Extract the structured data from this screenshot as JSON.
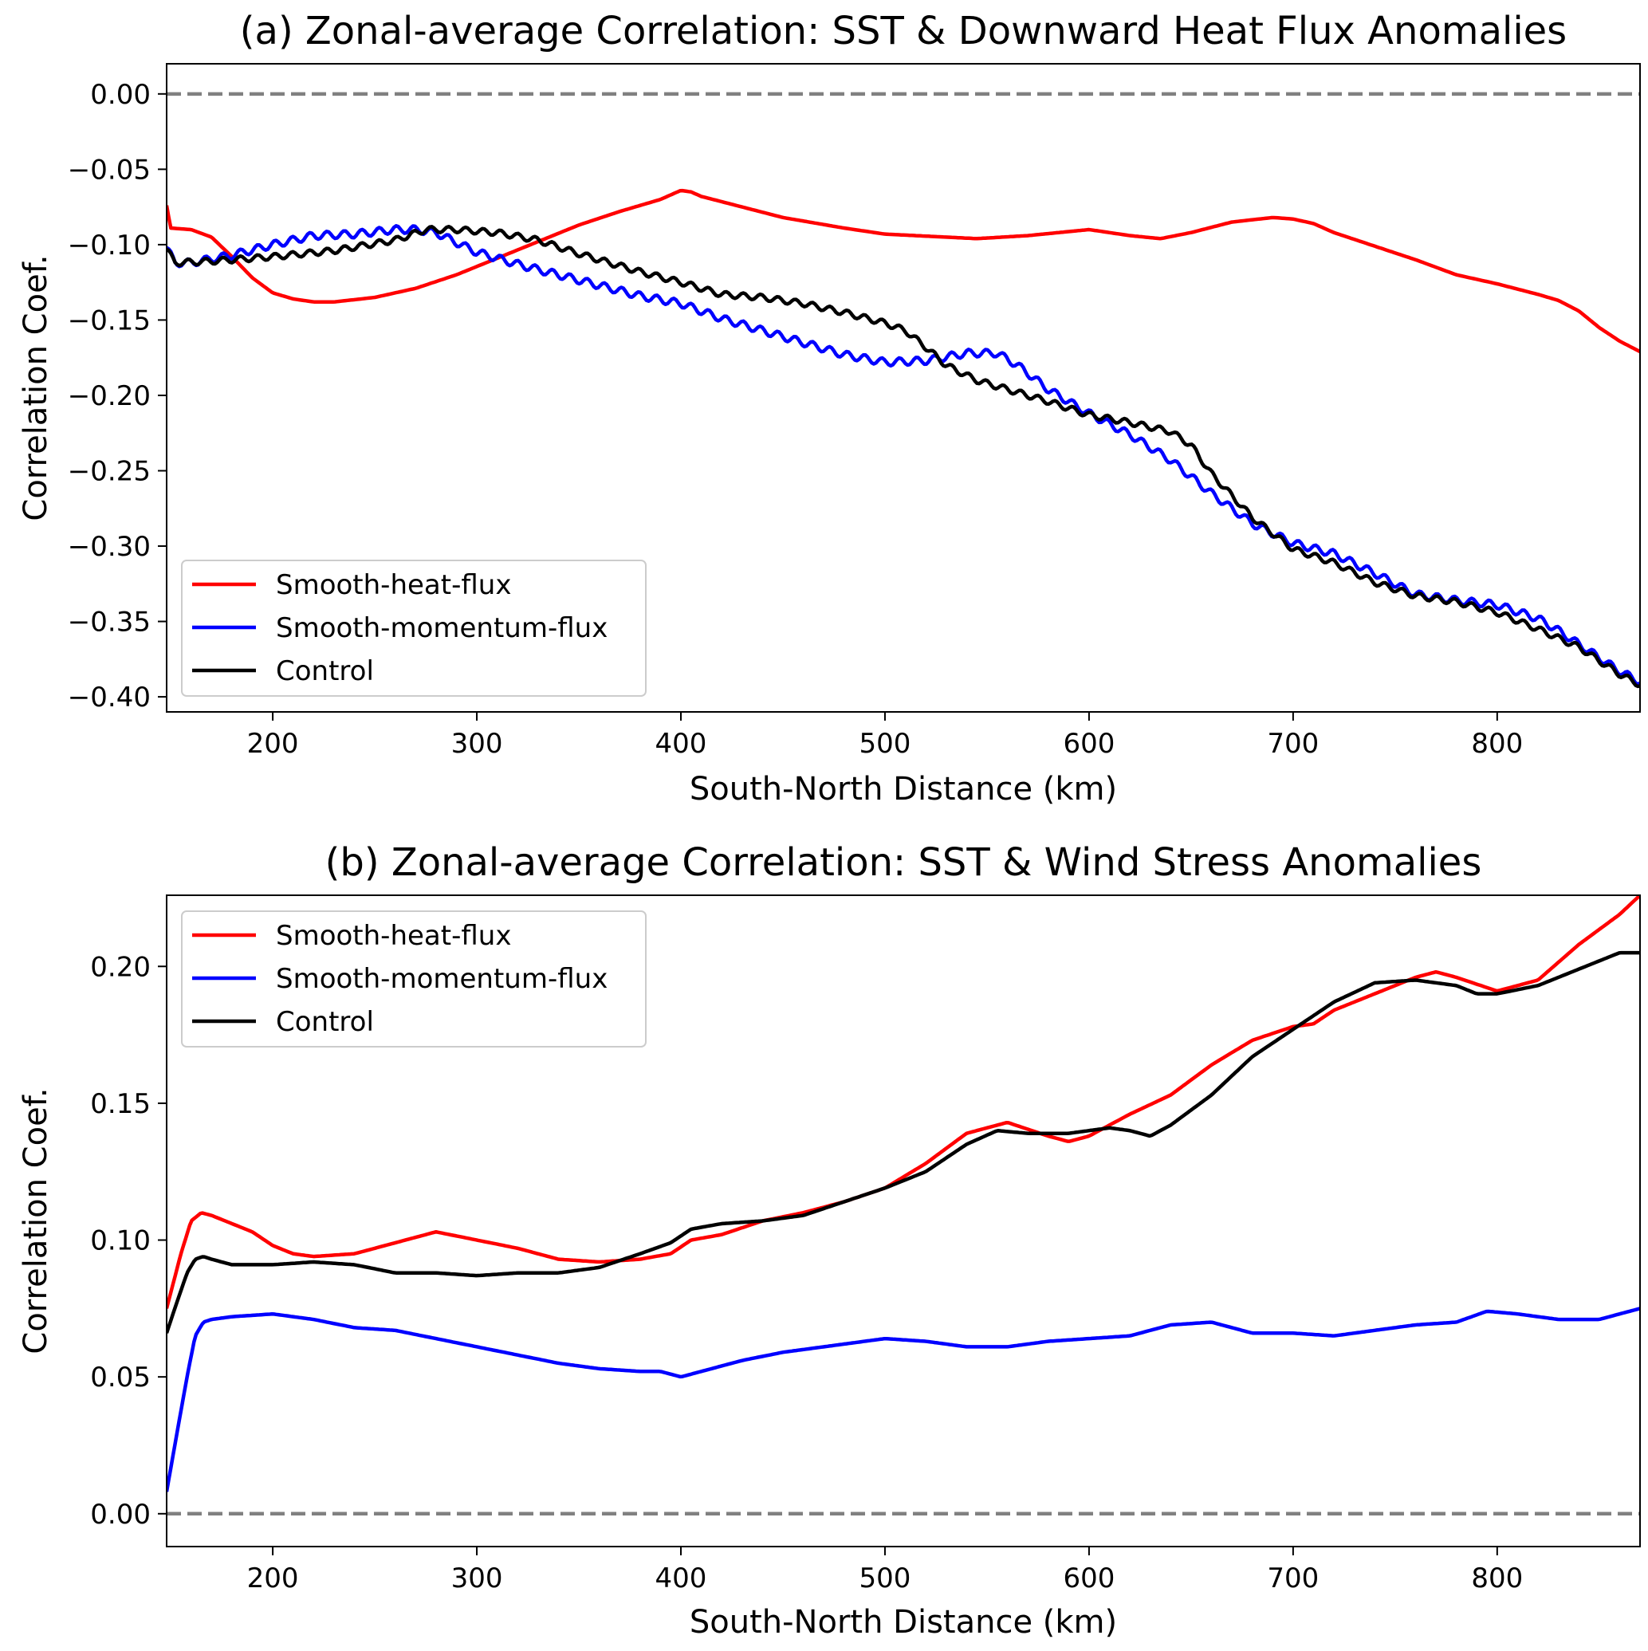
{
  "chart_data": [
    {
      "type": "line",
      "title": "(a) Zonal-average Correlation: SST & Downward Heat Flux Anomalies",
      "xlabel": "South-North Distance (km)",
      "ylabel": "Correlation Coef.",
      "xlim": [
        148,
        870
      ],
      "ylim": [
        -0.41,
        0.02
      ],
      "xticks": [
        200,
        300,
        400,
        500,
        600,
        700,
        800
      ],
      "xtick_labels": [
        "200",
        "300",
        "400",
        "500",
        "600",
        "700",
        "800"
      ],
      "yticks": [
        0,
        -0.05,
        -0.1,
        -0.15,
        -0.2,
        -0.25,
        -0.3,
        -0.35,
        -0.4
      ],
      "ytick_labels": [
        "0.00",
        "−0.05",
        "−0.10",
        "−0.15",
        "−0.20",
        "−0.25",
        "−0.30",
        "−0.35",
        "−0.40"
      ],
      "reference_line": {
        "y": 0.0,
        "style": "dashed",
        "color": "#808080"
      },
      "legend": {
        "position": "bottom-left",
        "entries": [
          "Smooth-heat-flux",
          "Smooth-momentum-flux",
          "Control"
        ]
      },
      "grid": false,
      "series": [
        {
          "name": "Smooth-heat-flux",
          "color": "#ff0000",
          "ripple": 0,
          "x": [
            148,
            150,
            160,
            170,
            180,
            190,
            200,
            210,
            220,
            230,
            250,
            270,
            290,
            310,
            330,
            350,
            370,
            390,
            395,
            400,
            405,
            410,
            430,
            450,
            480,
            500,
            530,
            545,
            570,
            600,
            620,
            635,
            650,
            670,
            690,
            700,
            710,
            720,
            740,
            760,
            780,
            800,
            820,
            830,
            840,
            850,
            860,
            870
          ],
          "y": [
            -0.074,
            -0.089,
            -0.09,
            -0.095,
            -0.108,
            -0.122,
            -0.132,
            -0.136,
            -0.138,
            -0.138,
            -0.135,
            -0.129,
            -0.12,
            -0.109,
            -0.098,
            -0.087,
            -0.078,
            -0.07,
            -0.067,
            -0.064,
            -0.065,
            -0.068,
            -0.075,
            -0.082,
            -0.089,
            -0.093,
            -0.095,
            -0.096,
            -0.094,
            -0.09,
            -0.094,
            -0.096,
            -0.092,
            -0.085,
            -0.082,
            -0.083,
            -0.086,
            -0.092,
            -0.101,
            -0.11,
            -0.12,
            -0.126,
            -0.133,
            -0.137,
            -0.144,
            -0.155,
            -0.164,
            -0.171
          ]
        },
        {
          "name": "Smooth-momentum-flux",
          "color": "#0000ff",
          "ripple": 0.0025,
          "x": [
            148,
            152,
            160,
            180,
            200,
            220,
            240,
            260,
            270,
            280,
            300,
            320,
            340,
            360,
            380,
            400,
            420,
            440,
            460,
            480,
            500,
            520,
            540,
            555,
            565,
            580,
            600,
            620,
            640,
            660,
            680,
            700,
            720,
            740,
            760,
            780,
            800,
            820,
            830,
            840,
            860,
            870
          ],
          "y": [
            -0.102,
            -0.112,
            -0.112,
            -0.107,
            -0.1,
            -0.094,
            -0.093,
            -0.09,
            -0.09,
            -0.092,
            -0.105,
            -0.113,
            -0.12,
            -0.127,
            -0.134,
            -0.139,
            -0.149,
            -0.157,
            -0.165,
            -0.173,
            -0.178,
            -0.177,
            -0.172,
            -0.172,
            -0.18,
            -0.196,
            -0.212,
            -0.226,
            -0.243,
            -0.265,
            -0.285,
            -0.298,
            -0.305,
            -0.318,
            -0.332,
            -0.336,
            -0.339,
            -0.348,
            -0.356,
            -0.365,
            -0.383,
            -0.39
          ]
        },
        {
          "name": "Control",
          "color": "#000000",
          "ripple": 0.002,
          "x": [
            148,
            152,
            170,
            200,
            230,
            260,
            275,
            290,
            310,
            330,
            350,
            380,
            400,
            420,
            440,
            460,
            480,
            500,
            510,
            520,
            530,
            545,
            560,
            580,
            600,
            620,
            640,
            650,
            660,
            680,
            700,
            720,
            740,
            760,
            780,
            800,
            820,
            840,
            860,
            870
          ],
          "y": [
            -0.103,
            -0.112,
            -0.111,
            -0.108,
            -0.104,
            -0.097,
            -0.09,
            -0.09,
            -0.092,
            -0.097,
            -0.106,
            -0.118,
            -0.125,
            -0.133,
            -0.135,
            -0.139,
            -0.145,
            -0.152,
            -0.157,
            -0.168,
            -0.18,
            -0.19,
            -0.196,
            -0.204,
            -0.213,
            -0.218,
            -0.224,
            -0.233,
            -0.252,
            -0.281,
            -0.302,
            -0.311,
            -0.324,
            -0.333,
            -0.337,
            -0.344,
            -0.355,
            -0.367,
            -0.385,
            -0.392
          ]
        }
      ]
    },
    {
      "type": "line",
      "title": "(b) Zonal-average Correlation: SST & Wind Stress Anomalies",
      "xlabel": "South-North Distance (km)",
      "ylabel": "Correlation Coef.",
      "xlim": [
        148,
        870
      ],
      "ylim": [
        -0.012,
        0.226
      ],
      "xticks": [
        200,
        300,
        400,
        500,
        600,
        700,
        800
      ],
      "xtick_labels": [
        "200",
        "300",
        "400",
        "500",
        "600",
        "700",
        "800"
      ],
      "yticks": [
        0,
        0.05,
        0.1,
        0.15,
        0.2
      ],
      "ytick_labels": [
        "0.00",
        "0.05",
        "0.10",
        "0.15",
        "0.20"
      ],
      "reference_line": {
        "y": 0.0,
        "style": "dashed",
        "color": "#808080"
      },
      "legend": {
        "position": "top-left",
        "entries": [
          "Smooth-heat-flux",
          "Smooth-momentum-flux",
          "Control"
        ]
      },
      "grid": false,
      "series": [
        {
          "name": "Smooth-heat-flux",
          "color": "#ff0000",
          "ripple": 0,
          "x": [
            148,
            155,
            160,
            165,
            170,
            180,
            190,
            200,
            210,
            220,
            240,
            260,
            280,
            300,
            320,
            340,
            360,
            380,
            395,
            405,
            420,
            440,
            460,
            480,
            500,
            520,
            540,
            560,
            580,
            590,
            600,
            610,
            620,
            640,
            660,
            680,
            700,
            710,
            720,
            740,
            760,
            770,
            780,
            800,
            820,
            840,
            860,
            870
          ],
          "y": [
            0.075,
            0.095,
            0.107,
            0.11,
            0.109,
            0.106,
            0.103,
            0.098,
            0.095,
            0.094,
            0.095,
            0.099,
            0.103,
            0.1,
            0.097,
            0.093,
            0.092,
            0.093,
            0.095,
            0.1,
            0.102,
            0.107,
            0.11,
            0.114,
            0.119,
            0.128,
            0.139,
            0.143,
            0.138,
            0.136,
            0.138,
            0.142,
            0.146,
            0.153,
            0.164,
            0.173,
            0.178,
            0.179,
            0.184,
            0.19,
            0.196,
            0.198,
            0.196,
            0.191,
            0.195,
            0.208,
            0.219,
            0.226
          ]
        },
        {
          "name": "Smooth-momentum-flux",
          "color": "#0000ff",
          "ripple": 0,
          "x": [
            148,
            152,
            158,
            162,
            166,
            170,
            180,
            200,
            220,
            240,
            260,
            280,
            300,
            320,
            340,
            360,
            380,
            390,
            400,
            410,
            430,
            450,
            470,
            500,
            520,
            540,
            560,
            580,
            600,
            620,
            640,
            660,
            680,
            700,
            720,
            740,
            760,
            780,
            795,
            810,
            830,
            850,
            870
          ],
          "y": [
            0.008,
            0.025,
            0.05,
            0.065,
            0.07,
            0.071,
            0.072,
            0.073,
            0.071,
            0.068,
            0.067,
            0.064,
            0.061,
            0.058,
            0.055,
            0.053,
            0.052,
            0.052,
            0.05,
            0.052,
            0.056,
            0.059,
            0.061,
            0.064,
            0.063,
            0.061,
            0.061,
            0.063,
            0.064,
            0.065,
            0.069,
            0.07,
            0.066,
            0.066,
            0.065,
            0.067,
            0.069,
            0.07,
            0.074,
            0.073,
            0.071,
            0.071,
            0.075
          ]
        },
        {
          "name": "Control",
          "color": "#000000",
          "ripple": 0,
          "x": [
            148,
            152,
            158,
            162,
            166,
            170,
            180,
            200,
            220,
            240,
            260,
            280,
            300,
            320,
            340,
            360,
            380,
            395,
            405,
            420,
            440,
            460,
            480,
            500,
            520,
            540,
            555,
            570,
            590,
            610,
            620,
            630,
            640,
            660,
            680,
            700,
            720,
            740,
            760,
            780,
            790,
            800,
            820,
            840,
            860,
            870
          ],
          "y": [
            0.066,
            0.075,
            0.088,
            0.093,
            0.094,
            0.093,
            0.091,
            0.091,
            0.092,
            0.091,
            0.088,
            0.088,
            0.087,
            0.088,
            0.088,
            0.09,
            0.095,
            0.099,
            0.104,
            0.106,
            0.107,
            0.109,
            0.114,
            0.119,
            0.125,
            0.135,
            0.14,
            0.139,
            0.139,
            0.141,
            0.14,
            0.138,
            0.142,
            0.153,
            0.167,
            0.177,
            0.187,
            0.194,
            0.195,
            0.193,
            0.19,
            0.19,
            0.193,
            0.199,
            0.205,
            0.205
          ]
        }
      ]
    }
  ]
}
